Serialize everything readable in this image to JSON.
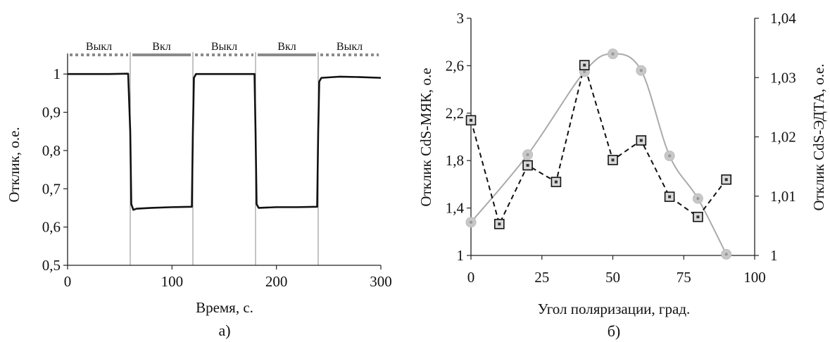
{
  "chart_data": [
    {
      "panel_label": "а)",
      "type": "line",
      "xlabel": "Время, с.",
      "ylabel": "Отклик, о.е.",
      "xlim": [
        0,
        300
      ],
      "ylim": [
        0.5,
        1.05
      ],
      "x_ticks": [
        0,
        100,
        200,
        300
      ],
      "x_tick_labels": [
        "0",
        "100",
        "200",
        "300"
      ],
      "y_ticks": [
        0.5,
        0.6,
        0.7,
        0.8,
        0.9,
        1.0
      ],
      "y_tick_labels": [
        "0,5",
        "0,6",
        "0,7",
        "0,8",
        "0,9",
        "1"
      ],
      "grid": false,
      "phase_boundaries": [
        60,
        120,
        180,
        240
      ],
      "phases": [
        {
          "label": "Выкл",
          "x": [
            0,
            60
          ],
          "state": "off"
        },
        {
          "label": "Вкл",
          "x": [
            60,
            120
          ],
          "state": "on"
        },
        {
          "label": "Выкл",
          "x": [
            120,
            180
          ],
          "state": "off"
        },
        {
          "label": "Вкл",
          "x": [
            180,
            240
          ],
          "state": "on"
        },
        {
          "label": "Выкл",
          "x": [
            240,
            300
          ],
          "state": "off"
        }
      ],
      "series": [
        {
          "x": [
            0,
            20,
            40,
            58,
            60,
            61,
            63,
            66,
            80,
            100,
            119,
            120,
            121,
            123,
            140,
            160,
            179,
            180,
            181,
            183,
            200,
            220,
            239,
            240,
            241,
            243,
            260,
            280,
            300
          ],
          "y": [
            1.0,
            1.0,
            1.0,
            1.001,
            0.85,
            0.66,
            0.645,
            0.648,
            0.65,
            0.652,
            0.653,
            0.85,
            0.99,
            1.0,
            1.0,
            1.0,
            1.0,
            0.85,
            0.66,
            0.65,
            0.652,
            0.652,
            0.653,
            0.85,
            0.98,
            0.99,
            0.993,
            0.992,
            0.99
          ]
        }
      ]
    },
    {
      "panel_label": "б)",
      "type": "line",
      "xlabel": "Угол поляризации, град.",
      "ylabel": "Отклик CdS-МЯК, о.е",
      "y2label": "Отклик CdS-ЭДТА, о.е.",
      "xlim": [
        0,
        100
      ],
      "ylim": [
        1,
        3
      ],
      "y2lim": [
        1,
        1.04
      ],
      "x_ticks": [
        0,
        25,
        50,
        75,
        100
      ],
      "x_tick_labels": [
        "0",
        "25",
        "50",
        "75",
        "100"
      ],
      "y_ticks": [
        1,
        1.4,
        1.8,
        2.2,
        2.6,
        3
      ],
      "y_tick_labels": [
        "1",
        "1,4",
        "1,8",
        "2,2",
        "2,6",
        "3"
      ],
      "y2_ticks": [
        1,
        1.01,
        1.02,
        1.03,
        1.04
      ],
      "y2_tick_labels": [
        "1",
        "1,01",
        "1,02",
        "1,03",
        "1,04"
      ],
      "grid": false,
      "series": [
        {
          "axis": "left",
          "marker": "circle",
          "line_style": "smooth",
          "color": "#aaaaaa",
          "x": [
            0,
            20,
            40,
            50,
            60,
            70,
            80,
            90
          ],
          "y": [
            1.28,
            1.85,
            2.55,
            2.7,
            2.56,
            1.84,
            1.48,
            1.01
          ]
        },
        {
          "axis": "right",
          "marker": "square",
          "line_style": "dashed",
          "color": "#111111",
          "x": [
            0,
            10,
            20,
            30,
            40,
            50,
            60,
            70,
            80,
            90
          ],
          "y": [
            1.0228,
            1.0053,
            1.0152,
            1.0124,
            1.0321,
            1.0161,
            1.0194,
            1.0099,
            1.0065,
            1.0128
          ]
        }
      ]
    }
  ]
}
